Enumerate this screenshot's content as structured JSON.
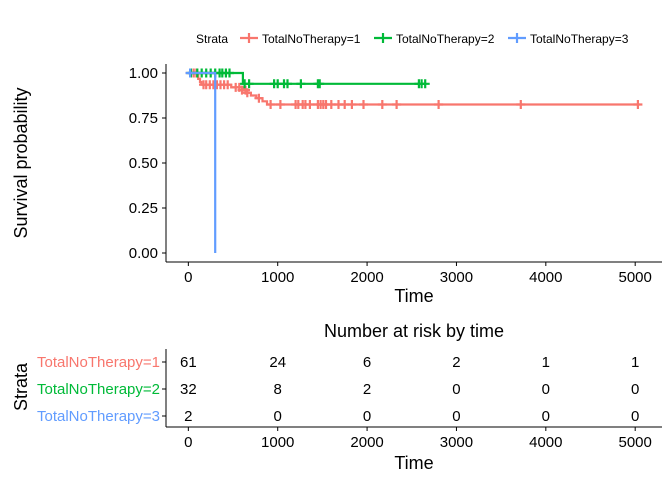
{
  "chart_data": [
    {
      "type": "line",
      "subtype": "kaplan-meier survival curve",
      "title": "",
      "xlabel": "Time",
      "ylabel": "Survival probability",
      "xlim": [
        -250,
        5300
      ],
      "ylim": [
        -0.05,
        1.05
      ],
      "x_ticks": [
        0,
        1000,
        2000,
        3000,
        4000,
        5000
      ],
      "y_ticks": [
        0.0,
        0.25,
        0.5,
        0.75,
        1.0
      ],
      "x_tick_labels": [
        "0",
        "1000",
        "2000",
        "3000",
        "4000",
        "5000"
      ],
      "y_tick_labels": [
        "0.00",
        "0.25",
        "0.50",
        "0.75",
        "1.00"
      ],
      "grid": false,
      "legend": {
        "title": "Strata",
        "placement": "top",
        "entries": [
          "TotalNoTherapy=1",
          "TotalNoTherapy=2",
          "TotalNoTherapy=3"
        ]
      },
      "series": [
        {
          "name": "TotalNoTherapy=1",
          "color": "#F8766D",
          "steps": [
            [
              0,
              1.0
            ],
            [
              110,
              0.967
            ],
            [
              130,
              0.95
            ],
            [
              145,
              0.935
            ],
            [
              480,
              0.92
            ],
            [
              620,
              0.905
            ],
            [
              650,
              0.89
            ],
            [
              700,
              0.875
            ],
            [
              760,
              0.86
            ],
            [
              830,
              0.843
            ],
            [
              880,
              0.825
            ],
            [
              900,
              0.825
            ],
            [
              5050,
              0.825
            ]
          ],
          "censored": [
            [
              20,
              1.0
            ],
            [
              60,
              1.0
            ],
            [
              90,
              1.0
            ],
            [
              170,
              0.935
            ],
            [
              200,
              0.935
            ],
            [
              240,
              0.935
            ],
            [
              280,
              0.935
            ],
            [
              320,
              0.935
            ],
            [
              360,
              0.935
            ],
            [
              400,
              0.935
            ],
            [
              440,
              0.935
            ],
            [
              530,
              0.92
            ],
            [
              570,
              0.92
            ],
            [
              600,
              0.905
            ],
            [
              640,
              0.905
            ],
            [
              660,
              0.89
            ],
            [
              790,
              0.86
            ],
            [
              920,
              0.825
            ],
            [
              1030,
              0.825
            ],
            [
              1200,
              0.825
            ],
            [
              1230,
              0.825
            ],
            [
              1280,
              0.825
            ],
            [
              1310,
              0.825
            ],
            [
              1360,
              0.825
            ],
            [
              1450,
              0.825
            ],
            [
              1480,
              0.825
            ],
            [
              1510,
              0.825
            ],
            [
              1540,
              0.825
            ],
            [
              1600,
              0.825
            ],
            [
              1680,
              0.825
            ],
            [
              1750,
              0.825
            ],
            [
              1830,
              0.825
            ],
            [
              1960,
              0.825
            ],
            [
              2170,
              0.825
            ],
            [
              2330,
              0.825
            ],
            [
              2800,
              0.825
            ],
            [
              3720,
              0.825
            ],
            [
              5030,
              0.825
            ]
          ]
        },
        {
          "name": "TotalNoTherapy=2",
          "color": "#00BA38",
          "steps": [
            [
              0,
              1.0
            ],
            [
              610,
              1.0
            ],
            [
              610,
              0.94
            ],
            [
              2660,
              0.94
            ]
          ],
          "censored": [
            [
              30,
              1.0
            ],
            [
              100,
              1.0
            ],
            [
              150,
              1.0
            ],
            [
              200,
              1.0
            ],
            [
              250,
              1.0
            ],
            [
              300,
              1.0
            ],
            [
              350,
              1.0
            ],
            [
              380,
              1.0
            ],
            [
              420,
              1.0
            ],
            [
              460,
              1.0
            ],
            [
              630,
              0.94
            ],
            [
              680,
              0.94
            ],
            [
              960,
              0.94
            ],
            [
              1000,
              0.94
            ],
            [
              1070,
              0.94
            ],
            [
              1110,
              0.94
            ],
            [
              1260,
              0.94
            ],
            [
              1450,
              0.94
            ],
            [
              1470,
              0.94
            ],
            [
              2580,
              0.94
            ],
            [
              2610,
              0.94
            ],
            [
              2650,
              0.94
            ]
          ]
        },
        {
          "name": "TotalNoTherapy=3",
          "color": "#619CFF",
          "steps": [
            [
              0,
              1.0
            ],
            [
              300,
              1.0
            ],
            [
              300,
              0.0
            ]
          ],
          "censored": [
            [
              20,
              1.0
            ]
          ]
        }
      ]
    },
    {
      "type": "table",
      "title": "Number at risk by time",
      "xlabel": "Time",
      "ylabel": "Strata",
      "x_ticks": [
        0,
        1000,
        2000,
        3000,
        4000,
        5000
      ],
      "x_tick_labels": [
        "0",
        "1000",
        "2000",
        "3000",
        "4000",
        "5000"
      ],
      "rows": [
        {
          "label": "TotalNoTherapy=1",
          "color": "#F8766D",
          "values": [
            "61",
            "24",
            "6",
            "2",
            "1",
            "1"
          ]
        },
        {
          "label": "TotalNoTherapy=2",
          "color": "#00BA38",
          "values": [
            "32",
            "8",
            "2",
            "0",
            "0",
            "0"
          ]
        },
        {
          "label": "TotalNoTherapy=3",
          "color": "#619CFF",
          "values": [
            "2",
            "0",
            "0",
            "0",
            "0",
            "0"
          ]
        }
      ]
    }
  ]
}
